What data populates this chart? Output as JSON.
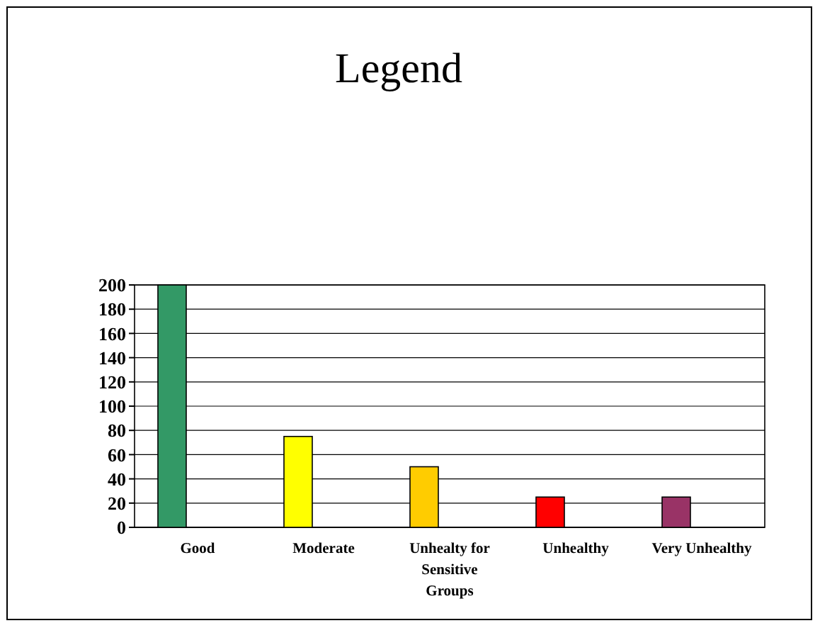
{
  "chart_data": {
    "type": "bar",
    "title": "Legend",
    "categories": [
      "Good",
      "Moderate",
      "Unhealty for Sensitive Groups",
      "Unhealthy",
      "Very Unhealthy"
    ],
    "values": [
      200,
      75,
      50,
      25,
      25
    ],
    "colors": [
      "#339966",
      "#ffff00",
      "#ffcc00",
      "#ff0000",
      "#993366"
    ],
    "ylim": [
      0,
      200
    ],
    "yticks": [
      0,
      20,
      40,
      60,
      80,
      100,
      120,
      140,
      160,
      180,
      200
    ],
    "grid": "y"
  }
}
